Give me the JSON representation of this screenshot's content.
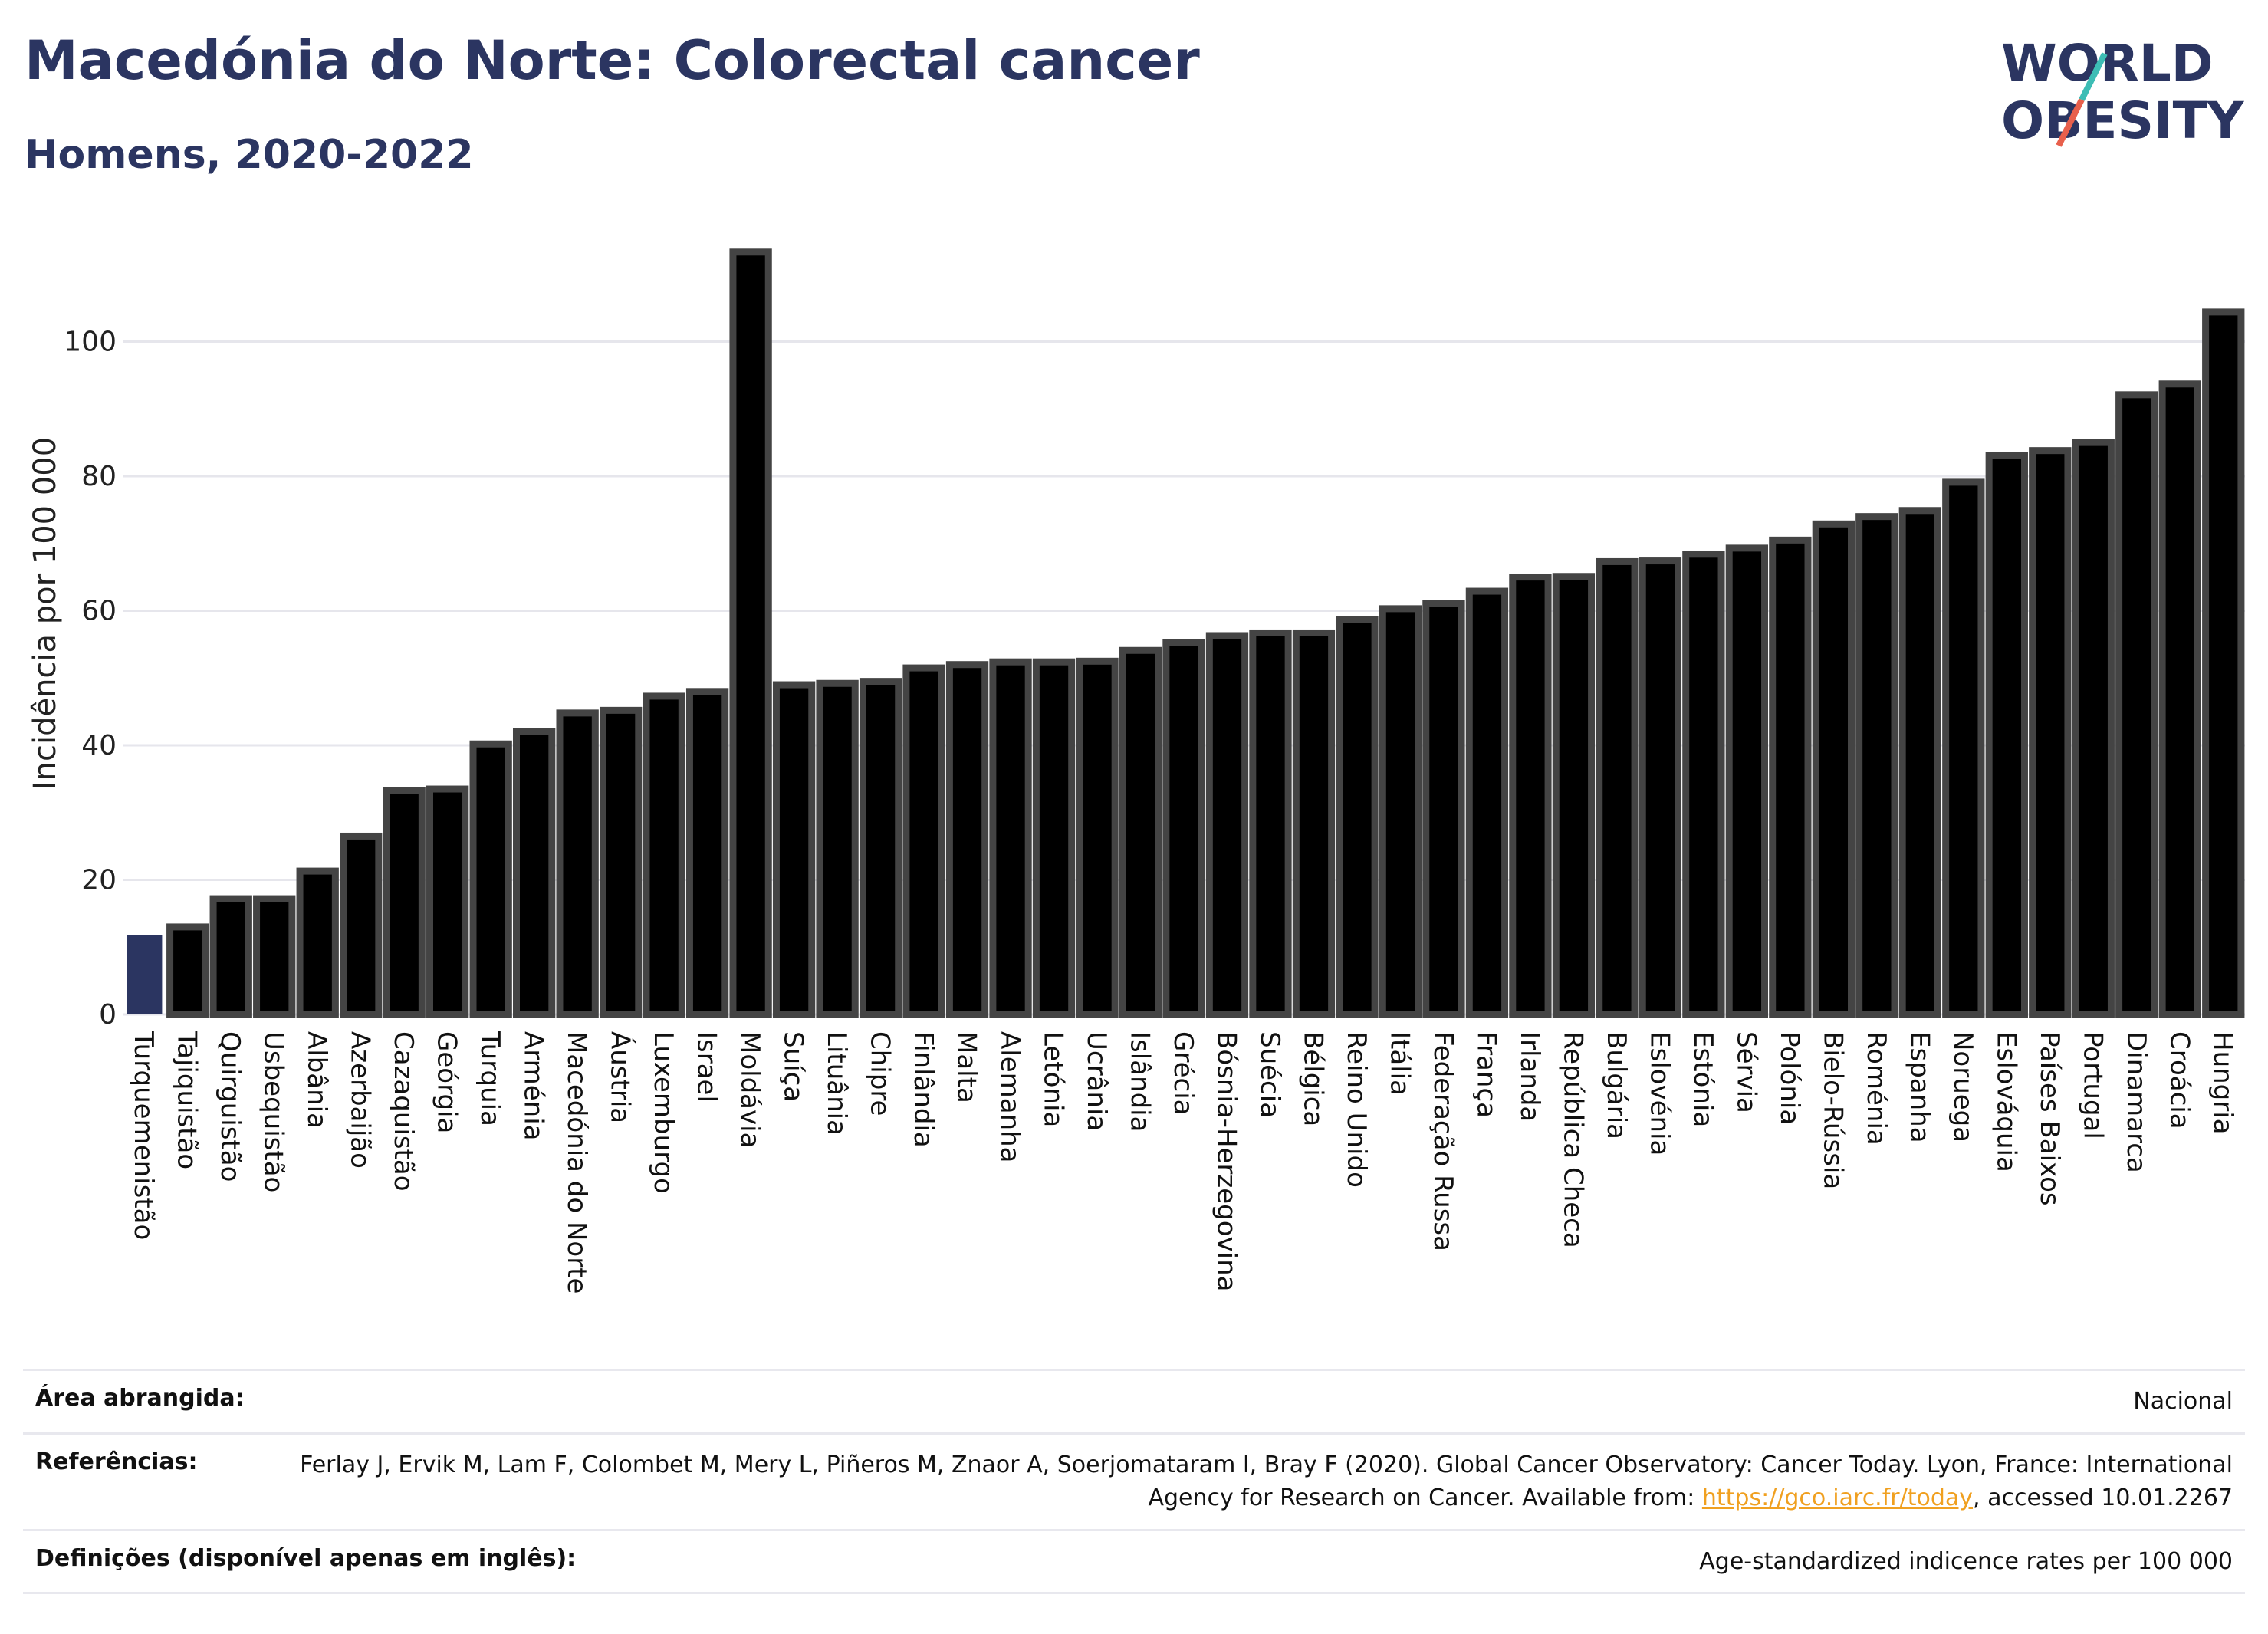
{
  "header": {
    "title": "Macedónia do Norte: Colorectal cancer",
    "subtitle": "Homens, 2020-2022"
  },
  "logo": {
    "line1": "WORLD",
    "line2": "OBESITY"
  },
  "colors": {
    "highlight": "#2b3561",
    "bar": "#000000",
    "bar_border": "#444444",
    "grid": "#e6e6ec",
    "title": "#2b3561"
  },
  "chart_data": {
    "type": "bar",
    "ylabel": "Incidência por 100 000",
    "ylim": [
      0,
      120
    ],
    "yticks": [
      0,
      20,
      40,
      60,
      80,
      100
    ],
    "grid": true,
    "highlight_category": "Turquemenistão",
    "categories": [
      "Turquemenistão",
      "Tajiquistão",
      "Quirguistão",
      "Usbequistão",
      "Albânia",
      "Azerbaijão",
      "Cazaquistão",
      "Geórgia",
      "Turquia",
      "Arménia",
      "Macedónia do Norte",
      "Áustria",
      "Luxemburgo",
      "Israel",
      "Moldávia",
      "Suíça",
      "Lituânia",
      "Chipre",
      "Finlândia",
      "Malta",
      "Alemanha",
      "Letónia",
      "Ucrânia",
      "Islândia",
      "Grécia",
      "Bósnia-Herzegovina",
      "Suécia",
      "Bélgica",
      "Reino Unido",
      "Itália",
      "Federação Russa",
      "França",
      "Irlanda",
      "República Checa",
      "Bulgária",
      "Eslovénia",
      "Estónia",
      "Sérvia",
      "Polónia",
      "Bielo-Rússia",
      "Roménia",
      "Espanha",
      "Noruega",
      "Eslováquia",
      "Países Baixos",
      "Portugal",
      "Dinamarca",
      "Croácia",
      "Hungria"
    ],
    "values": [
      11.8,
      13,
      17.2,
      17.2,
      21.3,
      26.5,
      33.3,
      33.5,
      40.2,
      42.1,
      44.8,
      45.2,
      47.3,
      48,
      113.3,
      49,
      49.2,
      49.5,
      51.5,
      52,
      52.4,
      52.4,
      52.5,
      54.1,
      55.3,
      56.3,
      56.7,
      56.7,
      58.7,
      60.3,
      61.1,
      62.9,
      65,
      65.1,
      67.3,
      67.4,
      68.4,
      69.3,
      70.5,
      72.9,
      74,
      74.9,
      79.1,
      83.1,
      83.8,
      85,
      92.1,
      93.7,
      104.4
    ]
  },
  "info": {
    "area_label": "Área abrangida:",
    "area_value": "Nacional",
    "refs_label": "Referências:",
    "refs_text": "Ferlay J, Ervik M, Lam F, Colombet M, Mery L, Piñeros M, Znaor A, Soerjomataram I, Bray F (2020). Global Cancer Observatory: Cancer Today. Lyon, France: International Agency for Research on Cancer. Available from: ",
    "refs_link": "https://gco.iarc.fr/today",
    "refs_tail": ", accessed 10.01.2267",
    "defs_label": "Definições (disponível apenas em inglês):",
    "defs_value": "Age-standardized indicence rates per 100 000"
  }
}
